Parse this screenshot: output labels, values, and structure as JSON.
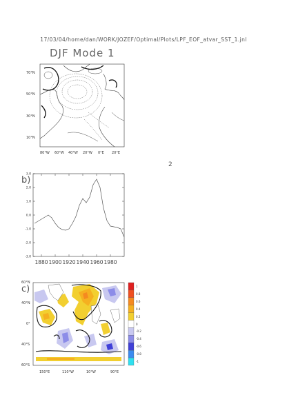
{
  "header": "17/03/04/home/dan/WORK/JOZEF/Optimal/Plots/LPF_EOF_atvar_SST_1.jnl",
  "title": "DJF Mode 1",
  "page_number": "2",
  "map_a": {
    "lat_labels": [
      "70°N",
      "50°N",
      "30°N",
      "10°N"
    ],
    "lon_labels": [
      "80°W",
      "60°W",
      "40°W",
      "20°W",
      "0°E",
      "20°E"
    ]
  },
  "chart_data": {
    "type": "line",
    "panel_label": "b)",
    "x": [
      1870,
      1875,
      1880,
      1885,
      1890,
      1895,
      1900,
      1905,
      1910,
      1915,
      1920,
      1925,
      1930,
      1935,
      1940,
      1945,
      1950,
      1955,
      1960,
      1965,
      1970,
      1975,
      1980,
      1985,
      1990,
      1995,
      2000
    ],
    "y": [
      -0.6,
      -0.45,
      -0.3,
      -0.15,
      0.0,
      -0.2,
      -0.6,
      -0.9,
      -1.05,
      -1.1,
      -1.0,
      -0.6,
      -0.1,
      0.7,
      1.2,
      0.9,
      1.3,
      2.2,
      2.6,
      2.0,
      0.5,
      -0.4,
      -0.8,
      -0.85,
      -0.9,
      -1.0,
      -1.6
    ],
    "xticks": [
      1880,
      1900,
      1920,
      1940,
      1960,
      1980
    ],
    "yticks": [
      3.0,
      2.0,
      1.0,
      0.0,
      -1.0,
      -2.0,
      -3.0
    ],
    "ytick_labels": [
      "3.0",
      "2.0",
      "1.0",
      "0.0",
      "-1.0",
      "-2.0",
      "-3.0"
    ],
    "xlim": [
      1868,
      2000
    ],
    "ylim": [
      -3.0,
      3.0
    ],
    "xlabel": "",
    "ylabel": "",
    "grid": false
  },
  "map_c": {
    "panel_label": "c)",
    "lat_labels": [
      "60°N",
      "40°N",
      "0°",
      "40°S",
      "60°S"
    ],
    "lon_labels": [
      "150°E",
      "110°W",
      "10°W",
      "90°E"
    ],
    "colorbar": {
      "labels": [
        "1",
        "0.8",
        "0.6",
        "0.4",
        "0.2",
        "0",
        "-0.2",
        "-0.4",
        "-0.6",
        "-0.8",
        "-1"
      ],
      "colors": [
        "#e02020",
        "#f05020",
        "#f58a20",
        "#f5b020",
        "#f2cf30",
        "#ffffff",
        "#c8c8f0",
        "#8c8ce8",
        "#4040d8",
        "#3c8cf0",
        "#30e0f0"
      ]
    }
  }
}
